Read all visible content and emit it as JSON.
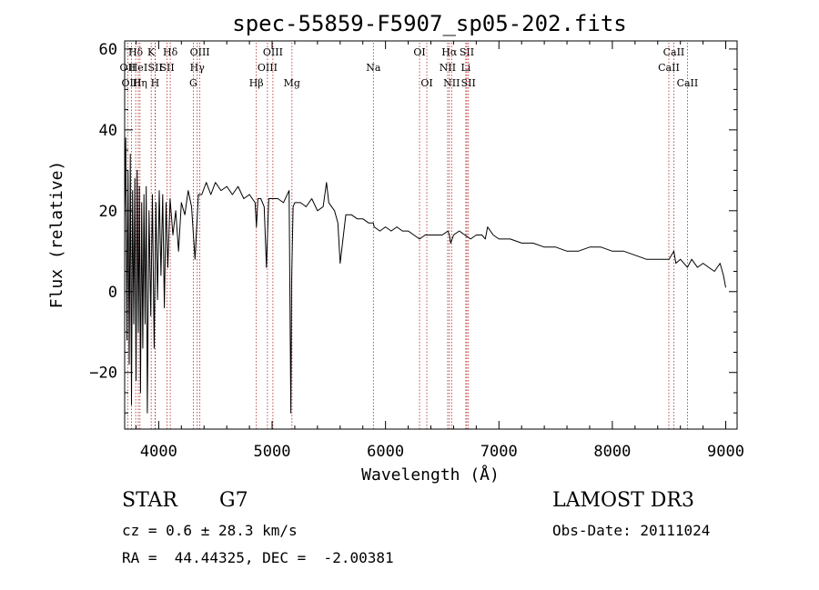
{
  "chart_data": {
    "type": "line",
    "title": "spec-55859-F5907_sp05-202.fits",
    "xlabel": "Wavelength (Å)",
    "ylabel": "Flux (relative)",
    "xlim": [
      3700,
      9100
    ],
    "ylim": [
      -34,
      62
    ],
    "x_ticks": [
      4000,
      5000,
      6000,
      7000,
      8000,
      9000
    ],
    "y_ticks": [
      -20,
      0,
      20,
      40,
      60
    ],
    "x_tick_labels": [
      "4000",
      "5000",
      "6000",
      "7000",
      "8000",
      "9000"
    ],
    "y_tick_labels": [
      "−20",
      "0",
      "20",
      "40",
      "60"
    ],
    "series": [
      {
        "name": "flux",
        "x": [
          3700,
          3710,
          3720,
          3730,
          3740,
          3750,
          3760,
          3770,
          3780,
          3790,
          3800,
          3810,
          3820,
          3830,
          3840,
          3850,
          3860,
          3870,
          3880,
          3890,
          3900,
          3915,
          3930,
          3945,
          3960,
          3975,
          3990,
          4005,
          4020,
          4035,
          4050,
          4065,
          4080,
          4100,
          4125,
          4150,
          4175,
          4200,
          4230,
          4260,
          4290,
          4320,
          4350,
          4380,
          4420,
          4460,
          4500,
          4550,
          4600,
          4650,
          4700,
          4750,
          4800,
          4850,
          4862,
          4875,
          4900,
          4930,
          4950,
          4970,
          5000,
          5050,
          5100,
          5150,
          5165,
          5172,
          5185,
          5200,
          5250,
          5300,
          5350,
          5400,
          5450,
          5480,
          5500,
          5550,
          5580,
          5600,
          5650,
          5700,
          5750,
          5800,
          5850,
          5892,
          5900,
          5950,
          6000,
          6050,
          6100,
          6150,
          6200,
          6250,
          6300,
          6350,
          6400,
          6450,
          6500,
          6550,
          6563,
          6575,
          6600,
          6650,
          6700,
          6750,
          6800,
          6850,
          6880,
          6900,
          6950,
          7000,
          7100,
          7200,
          7300,
          7400,
          7500,
          7600,
          7700,
          7800,
          7900,
          8000,
          8100,
          8200,
          8300,
          8400,
          8500,
          8542,
          8560,
          8600,
          8662,
          8700,
          8750,
          8800,
          8850,
          8900,
          8950,
          8980,
          9000
        ],
        "values": [
          18,
          38,
          -12,
          30,
          -18,
          34,
          -28,
          25,
          -8,
          28,
          -22,
          30,
          -10,
          26,
          -25,
          22,
          -14,
          24,
          -8,
          26,
          -30,
          20,
          -6,
          24,
          -14,
          22,
          -2,
          25,
          4,
          24,
          -4,
          22,
          6,
          23,
          14,
          20,
          10,
          22,
          19,
          25,
          21,
          8,
          24,
          24,
          27,
          24,
          27,
          25,
          26,
          24,
          26,
          23,
          24,
          22,
          16,
          23,
          23,
          21,
          6,
          23,
          23,
          23,
          22,
          25,
          -30,
          3,
          21,
          22,
          22,
          21,
          23,
          20,
          21,
          27,
          22,
          20,
          17,
          7,
          19,
          19,
          18,
          18,
          17,
          17,
          16,
          15,
          16,
          15,
          16,
          15,
          15,
          14,
          13,
          14,
          14,
          14,
          14,
          15,
          14,
          12,
          14,
          15,
          14,
          13,
          14,
          14,
          13,
          16,
          14,
          13,
          13,
          12,
          12,
          11,
          11,
          10,
          10,
          11,
          11,
          10,
          10,
          9,
          8,
          8,
          8,
          10,
          7,
          8,
          6,
          8,
          6,
          7,
          6,
          5,
          7,
          4,
          1
        ]
      }
    ],
    "line_markers": [
      {
        "name": "Hδ",
        "wavelength": 3797,
        "row": 1
      },
      {
        "name": "OII",
        "wavelength": 3727,
        "row": 2
      },
      {
        "name": "OIII",
        "wavelength": 3760,
        "row": 3
      },
      {
        "name": "HeI",
        "wavelength": 3820,
        "row": 2
      },
      {
        "name": "Hη",
        "wavelength": 3835,
        "row": 3
      },
      {
        "name": "K",
        "wavelength": 3934,
        "row": 1
      },
      {
        "name": "SII",
        "wavelength": 3970,
        "row": 2
      },
      {
        "name": "H",
        "wavelength": 3968,
        "row": 3
      },
      {
        "name": "Hδ",
        "wavelength": 4102,
        "row": 1
      },
      {
        "name": "SII",
        "wavelength": 4074,
        "row": 2
      },
      {
        "name": "OIII",
        "wavelength": 4363,
        "row": 1
      },
      {
        "name": "Hγ",
        "wavelength": 4340,
        "row": 2
      },
      {
        "name": "G",
        "wavelength": 4305,
        "row": 3
      },
      {
        "name": "Hβ",
        "wavelength": 4861,
        "row": 3
      },
      {
        "name": "OIII",
        "wavelength": 5007,
        "row": 1
      },
      {
        "name": "OIII",
        "wavelength": 4959,
        "row": 2
      },
      {
        "name": "Mg",
        "wavelength": 5175,
        "row": 3
      },
      {
        "name": "Na",
        "wavelength": 5893,
        "row": 2
      },
      {
        "name": "OI",
        "wavelength": 6300,
        "row": 1
      },
      {
        "name": "OI",
        "wavelength": 6364,
        "row": 3
      },
      {
        "name": "Hα",
        "wavelength": 6563,
        "row": 1
      },
      {
        "name": "NII",
        "wavelength": 6548,
        "row": 2
      },
      {
        "name": "NII",
        "wavelength": 6583,
        "row": 3
      },
      {
        "name": "SII",
        "wavelength": 6717,
        "row": 1
      },
      {
        "name": "Li",
        "wavelength": 6708,
        "row": 2
      },
      {
        "name": "SII",
        "wavelength": 6731,
        "row": 3
      },
      {
        "name": "CaII",
        "wavelength": 8542,
        "row": 1
      },
      {
        "name": "CaII",
        "wavelength": 8498,
        "row": 2
      },
      {
        "name": "CaII",
        "wavelength": 8662,
        "row": 3
      }
    ]
  },
  "info": {
    "object_class": "STAR",
    "subclass": "G7",
    "survey": "LAMOST DR3",
    "redshift": "cz = 0.6 ± 28.3 km/s",
    "obs_date": "Obs-Date: 20111024",
    "coords": "RA =  44.44325, DEC =  -2.00381"
  }
}
